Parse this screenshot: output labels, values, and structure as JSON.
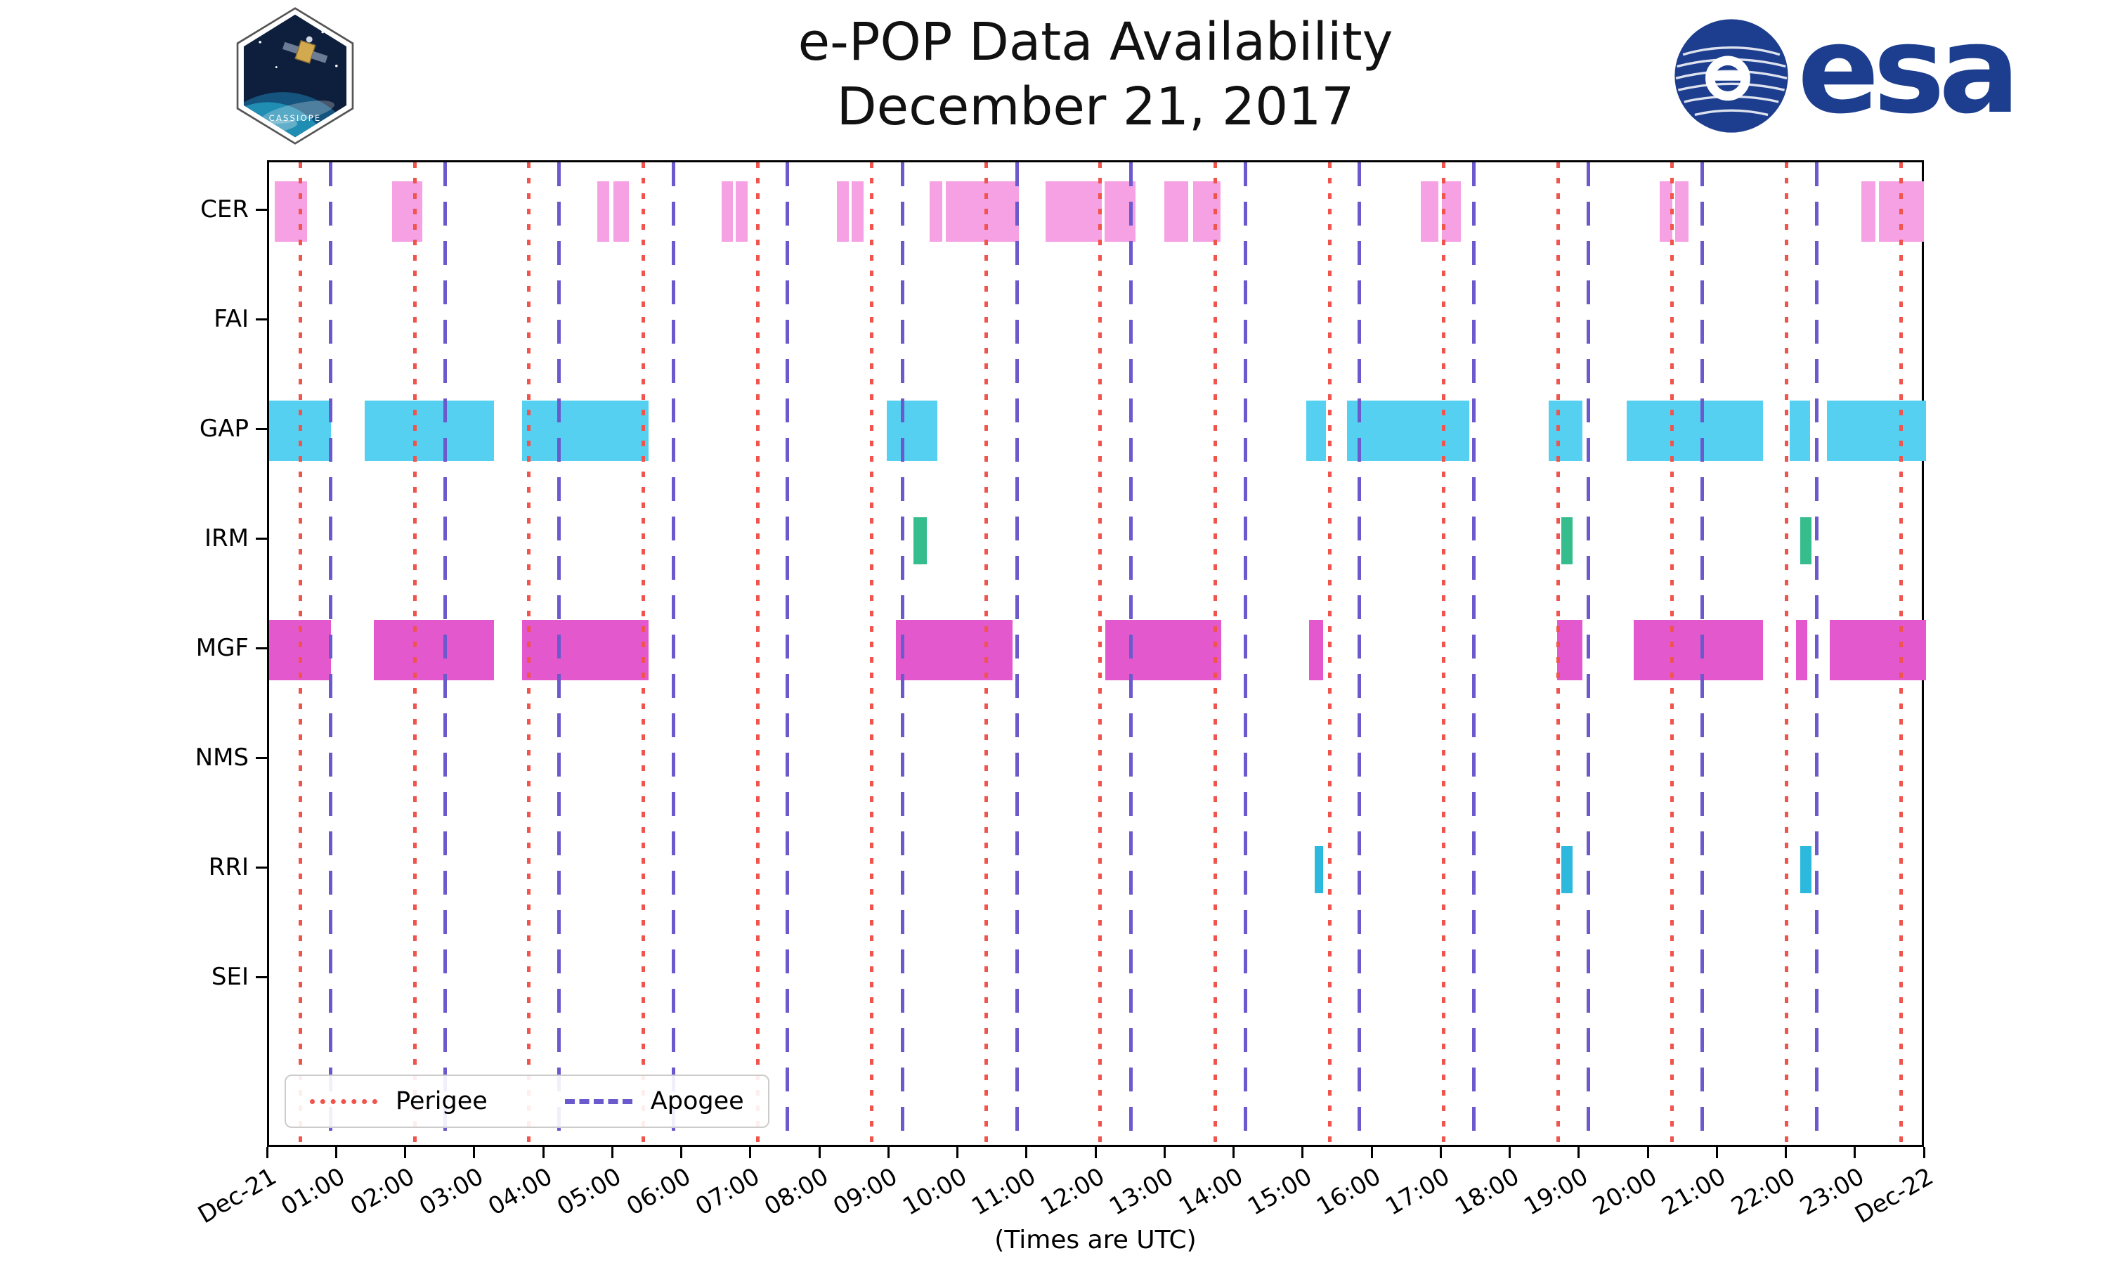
{
  "header": {
    "title": "e-POP Data Availability",
    "subtitle": "December 21, 2017",
    "cassiope_patch_label": "CASSIOPE",
    "esa_logo_label": "esa"
  },
  "branding": {
    "esa_blue": "#1d3e8e",
    "patch_navy": "#0e1f3d",
    "earth_teal": "#2193b8"
  },
  "chart_data": {
    "type": "timeline",
    "title": "e-POP Data Availability",
    "subtitle": "December 21, 2017",
    "x_axis": {
      "start_tick_label": "Dec-21",
      "end_tick_label": "Dec-22",
      "hour_tick_labels": [
        "01:00",
        "02:00",
        "03:00",
        "04:00",
        "05:00",
        "06:00",
        "07:00",
        "08:00",
        "09:00",
        "10:00",
        "11:00",
        "12:00",
        "13:00",
        "14:00",
        "15:00",
        "16:00",
        "17:00",
        "18:00",
        "19:00",
        "20:00",
        "21:00",
        "22:00",
        "23:00"
      ],
      "range_hours": [
        0,
        24
      ],
      "caption": "(Times are UTC)"
    },
    "rows": [
      {
        "label": "CER",
        "color": "#f6a1e4",
        "bar_scale": 1,
        "intervals_hours": [
          [
            0.08,
            0.55
          ],
          [
            1.78,
            2.22
          ],
          [
            4.75,
            4.93
          ],
          [
            4.99,
            5.21
          ],
          [
            6.55,
            6.72
          ],
          [
            6.76,
            6.93
          ],
          [
            8.22,
            8.4
          ],
          [
            8.44,
            8.61
          ],
          [
            9.57,
            9.75
          ],
          [
            9.8,
            10.86
          ],
          [
            11.25,
            12.06
          ],
          [
            12.1,
            12.55
          ],
          [
            12.97,
            13.31
          ],
          [
            13.38,
            13.78
          ],
          [
            16.68,
            16.94
          ],
          [
            16.99,
            17.26
          ],
          [
            20.14,
            20.33
          ],
          [
            20.37,
            20.56
          ],
          [
            23.06,
            23.27
          ],
          [
            23.32,
            23.97
          ]
        ]
      },
      {
        "label": "FAI",
        "color": "#f6a1e4",
        "bar_scale": 1,
        "intervals_hours": []
      },
      {
        "label": "GAP",
        "color": "#56d0f0",
        "bar_scale": 1,
        "intervals_hours": [
          [
            0.0,
            0.9
          ],
          [
            1.38,
            3.26
          ],
          [
            3.66,
            5.5
          ],
          [
            8.95,
            9.68
          ],
          [
            15.02,
            15.31
          ],
          [
            15.61,
            17.38
          ],
          [
            18.53,
            19.02
          ],
          [
            19.66,
            21.64
          ],
          [
            22.03,
            22.32
          ],
          [
            22.56,
            24.0
          ]
        ]
      },
      {
        "label": "IRM",
        "color": "#35bd8d",
        "bar_scale": 0.78,
        "intervals_hours": [
          [
            9.33,
            9.53
          ],
          [
            18.72,
            18.88
          ],
          [
            22.18,
            22.34
          ]
        ]
      },
      {
        "label": "MGF",
        "color": "#e358cd",
        "bar_scale": 1,
        "intervals_hours": [
          [
            0.0,
            0.9
          ],
          [
            1.52,
            3.26
          ],
          [
            3.66,
            5.5
          ],
          [
            9.08,
            10.77
          ],
          [
            12.11,
            13.79
          ],
          [
            15.06,
            15.27
          ],
          [
            18.66,
            19.02
          ],
          [
            19.77,
            21.64
          ],
          [
            22.12,
            22.28
          ],
          [
            22.6,
            24.0
          ]
        ]
      },
      {
        "label": "NMS",
        "color": "#bbbbbb",
        "bar_scale": 1,
        "intervals_hours": []
      },
      {
        "label": "RRI",
        "color": "#2cb9dd",
        "bar_scale": 0.78,
        "intervals_hours": [
          [
            15.14,
            15.27
          ],
          [
            18.72,
            18.88
          ],
          [
            22.18,
            22.34
          ]
        ]
      },
      {
        "label": "SEI",
        "color": "#bbbbbb",
        "bar_scale": 1,
        "intervals_hours": []
      }
    ],
    "events": {
      "perigee": {
        "label": "Perigee",
        "color": "#f0544c",
        "line_style": "dotted",
        "times_hours": [
          0.45,
          2.11,
          3.76,
          5.42,
          7.08,
          8.73,
          10.39,
          12.04,
          13.7,
          15.36,
          17.01,
          18.67,
          20.32,
          21.98,
          23.64
        ]
      },
      "apogee": {
        "label": "Apogee",
        "color": "#6a5acd",
        "line_style": "dashed",
        "times_hours": [
          0.89,
          2.55,
          4.2,
          5.86,
          7.51,
          9.17,
          10.83,
          12.48,
          14.14,
          15.79,
          17.45,
          19.11,
          20.76,
          22.42
        ]
      }
    },
    "legend": {
      "position": "lower-left",
      "items": [
        "Perigee",
        "Apogee"
      ]
    }
  }
}
